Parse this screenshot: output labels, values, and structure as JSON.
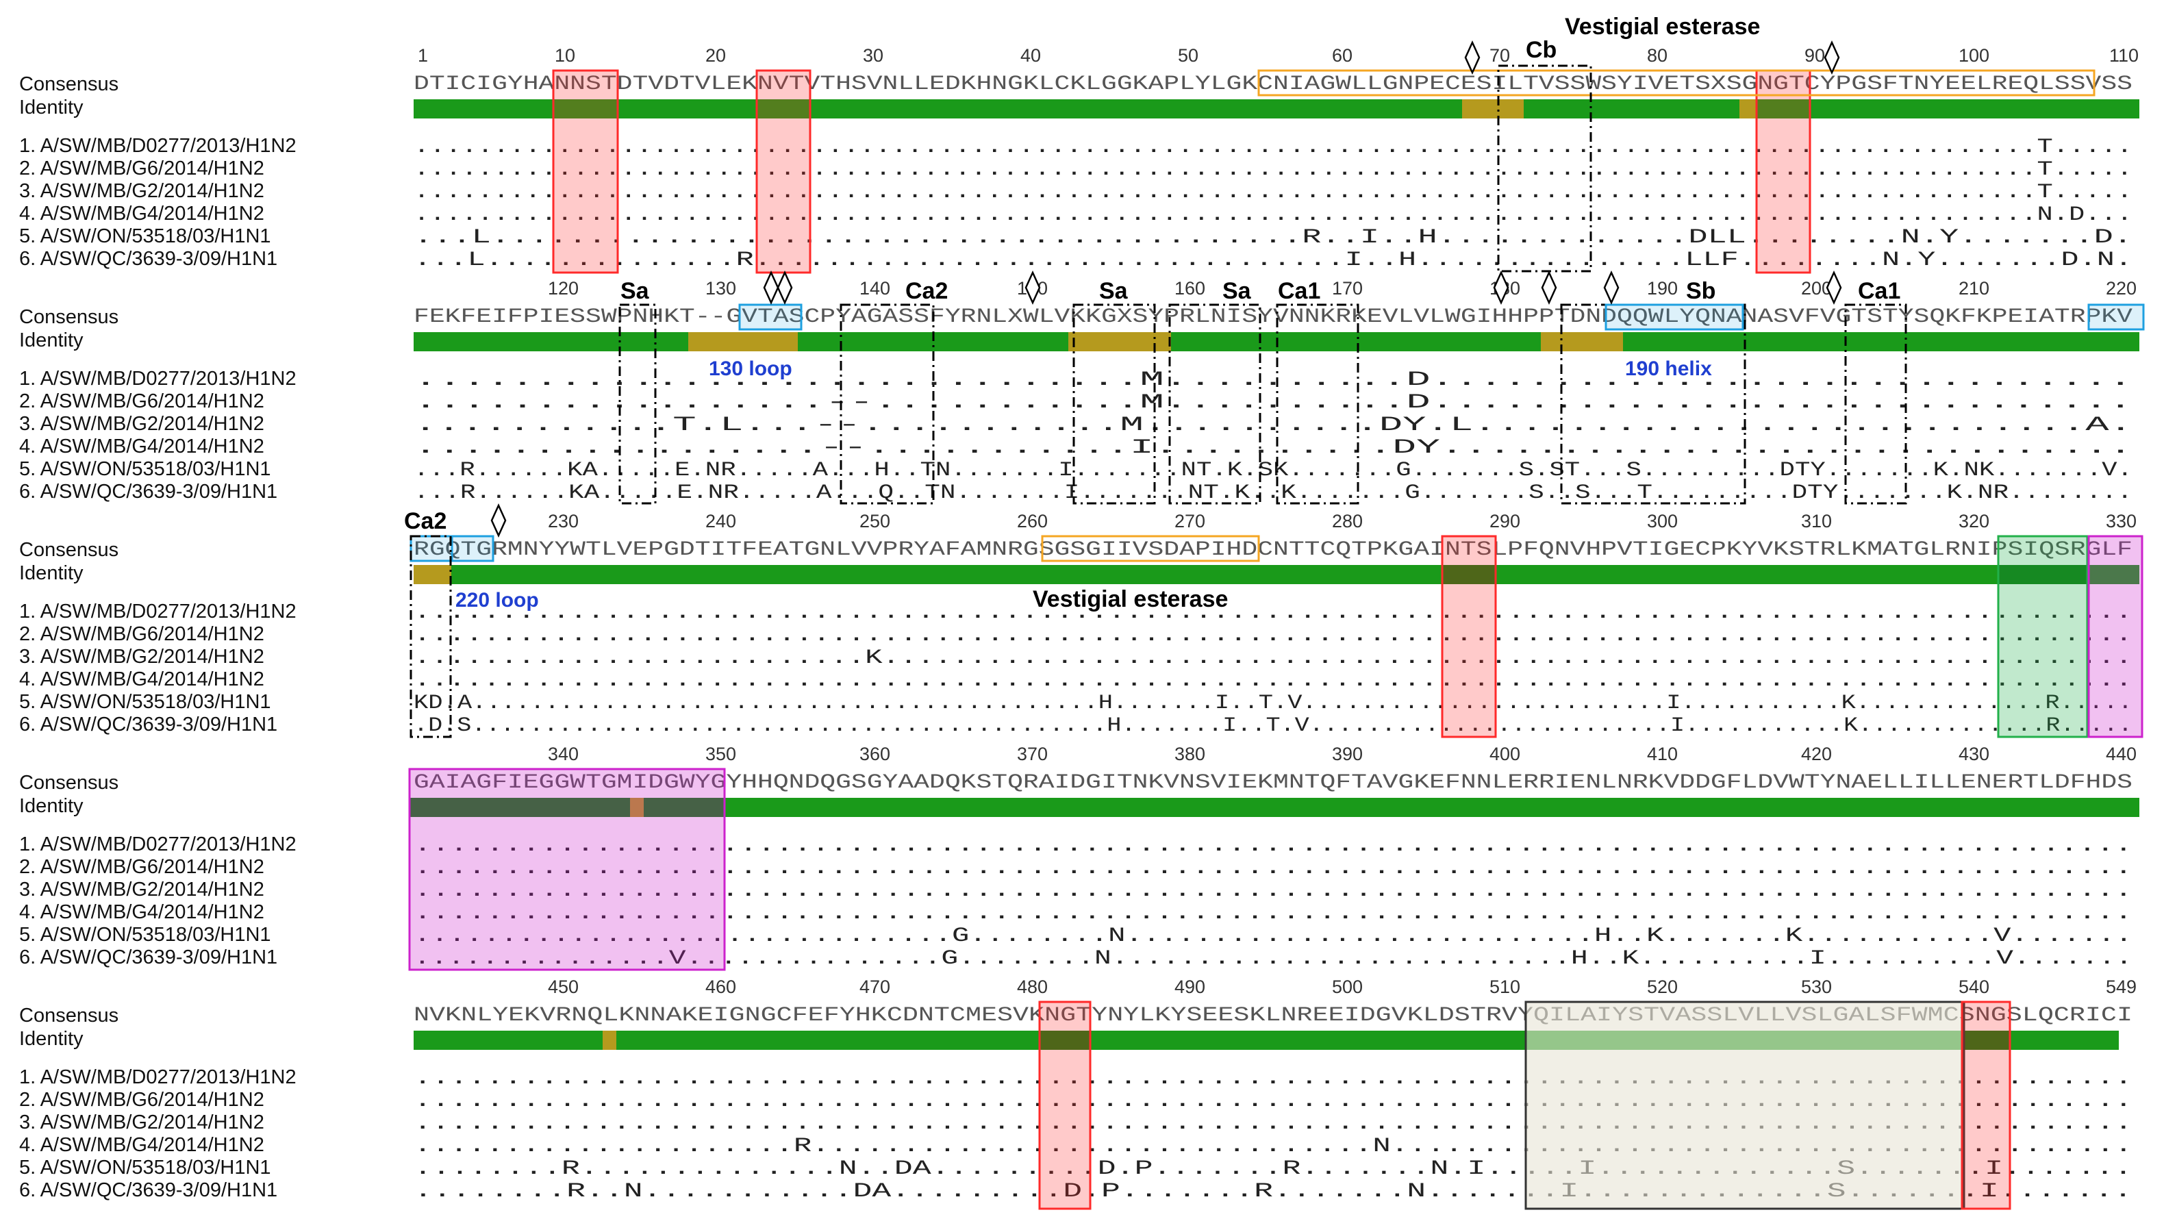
{
  "row_labels": {
    "consensus": "Consensus",
    "identity": "Identity"
  },
  "sequence_names": [
    "1. A/SW/MB/D0277/2013/H1N2",
    "2. A/SW/MB/G6/2014/H1N2",
    "3. A/SW/MB/G2/2014/H1N2",
    "4. A/SW/MB/G4/2014/H1N2",
    "5. A/SW/ON/53518/03/H1N1",
    "6. A/SW/QC/3639-3/09/H1N1"
  ],
  "colors": {
    "identity_full": "#1a9a1a",
    "identity_partial": "#b59a1e",
    "glycosylation_site": "#ff2a2a",
    "vestigial_esterase": "#f5a623",
    "receptor_binding": "#1ea0e0",
    "cleavage_site": "#22b04a",
    "fusion_peptide": "#cc22cc",
    "transmembrane": "#333333"
  },
  "blocks": [
    {
      "ticks": [
        "1",
        "10",
        "20",
        "30",
        "40",
        "50",
        "60",
        "70",
        "80",
        "90",
        "100",
        "110"
      ],
      "consensus": "DTICIGYHANNSTDTVDTVLEKNVTVTHSVNLLEDKHNGKLCKLGGKAPLYLGKCNIAGWLLGNPECESILTVSSWSYIVETSXSGNGTCYPGSFTNYEELREQLSSVSS",
      "rows": [
        "......................................................................................................T.....",
        "......................................................................................................T.....",
        "......................................................................................................T.....",
        "......................................................................................................N.D...",
        "...L..........................................R..I..H.............DLL........N.Y.......D.",
        "...L..............R.................................I..H...............LLF........N.Y.......D.N."
      ],
      "annotations": [
        {
          "text": "Vestigial esterase",
          "kind": "region"
        },
        {
          "text": "Cb",
          "kind": "region"
        }
      ]
    },
    {
      "ticks": [
        "120",
        "130",
        "140",
        "150",
        "160",
        "170",
        "180",
        "190",
        "200",
        "210",
        "220"
      ],
      "consensus": "FEKFEIFPIESSWPNHKT--GVTASCPYAGASSFYRNLXWLVKKGXSYPRLNISYVNNKRKEVLVLWGIHHPPTDNDQQWLYQNANASVFVGTSTYSQKFKPEIATRPKV",
      "rows": [
        "..............................M..........D.............................",
        ".................--...........M..........D.............................",
        "...........T.L...--...........M..........DY.L..........................A.",
        ".................--...........I..........DY.............................",
        "...R......KA.....E.NR.....A...H..TN.......I.......NT.K.SK.......G.......S.ST...S.........DTY.......K.NK.......V.",
        "...R......KA.....E.NR.....A...Q..TN.......I.......NT.K..K.......G.......S..S...T.........DTY.......K.NR........"
      ],
      "annotations": [
        {
          "text": "Sa",
          "kind": "region"
        },
        {
          "text": "Ca2",
          "kind": "region"
        },
        {
          "text": "Sa",
          "kind": "region"
        },
        {
          "text": "Sa",
          "kind": "region"
        },
        {
          "text": "Ca1",
          "kind": "region"
        },
        {
          "text": "Sb",
          "kind": "region"
        },
        {
          "text": "Ca1",
          "kind": "region"
        },
        {
          "text": "130 loop",
          "kind": "blue"
        },
        {
          "text": "190 helix",
          "kind": "blue"
        }
      ]
    },
    {
      "ticks": [
        "230",
        "240",
        "250",
        "260",
        "270",
        "280",
        "290",
        "300",
        "310",
        "320",
        "330"
      ],
      "consensus": "RGQTGRMNYYWTLVEPGDTITFEATGNLVVPRYAFAMNRGSGSGIIVSDAPIHDCNTTCQTPKGAINTSLPFQNVHPVTIGECPKYVKSTRLKMATGLRNIPSIQSRGLF",
      "rows": [
        "...................................................................................................",
        "...................................................................................................",
        "..........................K........................................................................",
        "...................................................................................................",
        "KD.A...........................................H.......I..T.V.........................I...........K.............R.....",
        ".D.S............................................H.......I..T.V.........................I...........K.............R....."
      ],
      "annotations": [
        {
          "text": "Ca2",
          "kind": "region"
        },
        {
          "text": "220 loop",
          "kind": "blue"
        },
        {
          "text": "Vestigial esterase",
          "kind": "region"
        }
      ]
    },
    {
      "ticks": [
        "340",
        "350",
        "360",
        "370",
        "380",
        "390",
        "400",
        "410",
        "420",
        "430",
        "440"
      ],
      "consensus": "GAIAGFIEGGWTGMIDGWYGYHHQNDQGSGYAADQKSTQRAIDGITNKVNSVIEKMNTQFTAVGKEFNNLERRIENLNRKVDDGFLDVWTYNAELLILLENERTLDFHDS",
      "rows": [
        "...............................................................................................",
        "...............................................................................................",
        "...............................................................................................",
        "...............................................................................................",
        "...............................G........N...........................H..K.......K...........V.......",
        "...............V...............G........N...........................H..K..........I..........V......."
      ],
      "annotations": []
    },
    {
      "ticks": [
        "450",
        "460",
        "470",
        "480",
        "490",
        "500",
        "510",
        "520",
        "530",
        "540",
        "549"
      ],
      "consensus": "NVKNLYEKVRNQLKNNAKEIGNGCFEFYHKCDNTCMESVKNGTYNYLKYSEESKLNREEIDGVKLDSTRVYQILAIYSTVASSLVLLVSLGALSFWMCSNGSLQCRICI",
      "rows": [
        "...............................................................................................",
        "...............................................................................................",
        "...............................................................................................",
        ".....................R...............................N.........................................",
        "........R..............N..DA.........D.P.......R.......N.I.....I.............S.......I.......",
        "........R..N...........DA.........D.P.......R.......N.......I.............S.......I......."
      ],
      "annotations": []
    }
  ]
}
